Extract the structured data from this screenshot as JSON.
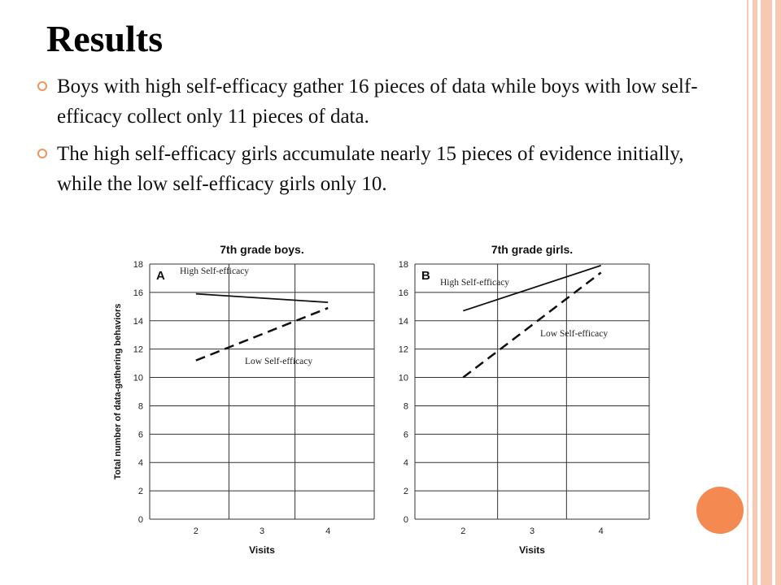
{
  "slide": {
    "title": "Results",
    "bullets": [
      "Boys with high self-efficacy gather 16 pieces of data while boys with low self-efficacy collect only 11 pieces of data.",
      "The high self-efficacy girls accumulate nearly 15 pieces of evidence initially, while the low self-efficacy girls only 10."
    ]
  },
  "colors": {
    "accent": "#f48a52",
    "stripe": "#f7c9b3",
    "bullet": "#f0955d"
  },
  "chart_data": [
    {
      "type": "line",
      "title": "7th grade boys.",
      "panel_label": "A",
      "xlabel": "Visits",
      "ylabel": "Total number of data-gathering behaviors",
      "x": [
        2,
        3,
        4
      ],
      "ylim": [
        0,
        18
      ],
      "yticks": [
        0,
        2,
        4,
        6,
        8,
        10,
        12,
        14,
        16,
        18
      ],
      "grid": true,
      "series": [
        {
          "name": "High Self-efficacy",
          "style": "solid",
          "x": [
            2,
            4
          ],
          "values": [
            15.9,
            15.3
          ]
        },
        {
          "name": "Low Self-efficacy",
          "style": "dashed",
          "x": [
            2,
            4
          ],
          "values": [
            11.2,
            14.9
          ]
        }
      ]
    },
    {
      "type": "line",
      "title": "7th grade girls.",
      "panel_label": "B",
      "xlabel": "Visits",
      "ylabel": "",
      "x": [
        2,
        3,
        4
      ],
      "ylim": [
        0,
        18
      ],
      "yticks": [
        0,
        2,
        4,
        6,
        8,
        10,
        12,
        14,
        16,
        18
      ],
      "grid": true,
      "series": [
        {
          "name": "High Self-efficacy",
          "style": "solid",
          "x": [
            2,
            4
          ],
          "values": [
            14.7,
            17.9
          ]
        },
        {
          "name": "Low Self-efficacy",
          "style": "dashed",
          "x": [
            2,
            4
          ],
          "values": [
            10.0,
            17.4
          ]
        }
      ]
    }
  ]
}
